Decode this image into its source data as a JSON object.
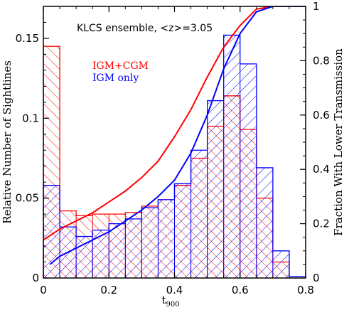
{
  "chart_data": {
    "type": "bar",
    "annotation": "KLCS ensemble, <z>=3.05",
    "xlabel": "t",
    "xlabel_sub": "900",
    "ylabel": "Relative Number of Sightlines",
    "y2label": "Fraction With Lower Transmission",
    "xlim": [
      0,
      0.8
    ],
    "ylim": [
      0,
      0.17
    ],
    "y2lim": [
      0,
      1
    ],
    "xticks": [
      0,
      0.2,
      0.4,
      0.6,
      0.8
    ],
    "xtick_labels": [
      "0",
      "0.2",
      "0.4",
      "0.6",
      "0.8"
    ],
    "yticks": [
      0,
      0.05,
      0.1,
      0.15
    ],
    "ytick_labels": [
      "0",
      "0.05",
      "0.1",
      "0.15"
    ],
    "y2ticks": [
      0,
      0.2,
      0.4,
      0.6,
      0.8,
      1
    ],
    "y2tick_labels": [
      "0",
      "0.2",
      "0.4",
      "0.6",
      "0.8",
      "1"
    ],
    "bin_edges": [
      0,
      0.05,
      0.1,
      0.15,
      0.2,
      0.25,
      0.3,
      0.35,
      0.4,
      0.45,
      0.5,
      0.55,
      0.6,
      0.65,
      0.7,
      0.75,
      0.8
    ],
    "series": [
      {
        "name": "IGM+CGM",
        "color": "#ff0000",
        "histogram": [
          0.145,
          0.042,
          0.039,
          0.04,
          0.04,
          0.041,
          0.045,
          0.049,
          0.058,
          0.075,
          0.095,
          0.114,
          0.093,
          0.05,
          0.01,
          0.0,
          0.0
        ],
        "cdf_x": [
          0,
          0.05,
          0.1,
          0.15,
          0.2,
          0.25,
          0.3,
          0.35,
          0.4,
          0.45,
          0.5,
          0.55,
          0.6,
          0.65,
          0.7,
          0.75,
          0.8
        ],
        "cdf_y": [
          0.14,
          0.18,
          0.21,
          0.24,
          0.28,
          0.32,
          0.37,
          0.43,
          0.52,
          0.62,
          0.74,
          0.85,
          0.93,
          0.99,
          1.0,
          1.0,
          1.0
        ]
      },
      {
        "name": "IGM only",
        "color": "#0000ff",
        "histogram": [
          0.058,
          0.032,
          0.026,
          0.03,
          0.034,
          0.037,
          0.044,
          0.049,
          0.059,
          0.08,
          0.111,
          0.152,
          0.134,
          0.069,
          0.017,
          0.001,
          0.0
        ],
        "cdf_x": [
          0.02,
          0.05,
          0.1,
          0.15,
          0.2,
          0.25,
          0.3,
          0.35,
          0.4,
          0.45,
          0.5,
          0.55,
          0.6,
          0.65,
          0.7,
          0.75,
          0.8
        ],
        "cdf_y": [
          0.05,
          0.08,
          0.11,
          0.14,
          0.17,
          0.21,
          0.25,
          0.3,
          0.36,
          0.46,
          0.6,
          0.77,
          0.9,
          0.98,
          1.0,
          1.0,
          1.0
        ]
      }
    ],
    "grid": false,
    "legend_position": "top-left"
  }
}
